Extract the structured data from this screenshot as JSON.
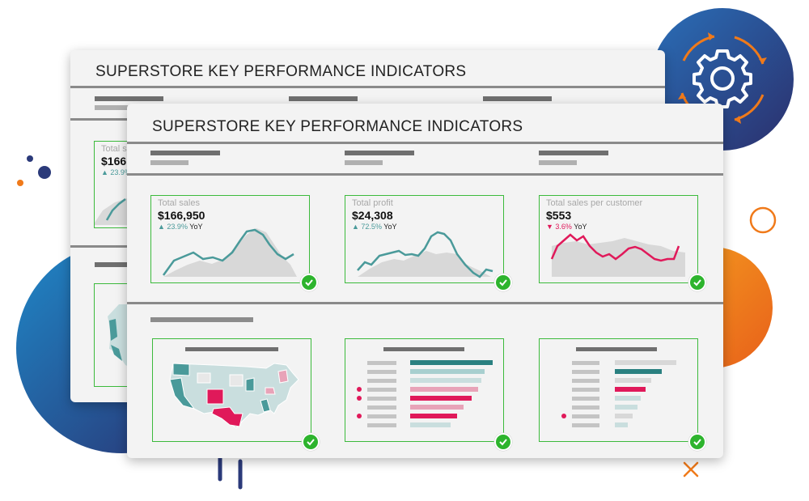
{
  "windows": {
    "back": {
      "title": "SUPERSTORE KEY PERFORMANCE INDICATORS",
      "kpi_partial": {
        "label": "Total s",
        "value": "$166",
        "delta": "23.9%"
      }
    },
    "front": {
      "title": "SUPERSTORE KEY PERFORMANCE INDICATORS",
      "kpis": [
        {
          "label": "Total sales",
          "value": "$166,950",
          "delta": "23.9%",
          "delta_suffix": "YoY",
          "direction": "up"
        },
        {
          "label": "Total profit",
          "value": "$24,308",
          "delta": "72.5%",
          "delta_suffix": "YoY",
          "direction": "up"
        },
        {
          "label": "Total sales per customer",
          "value": "$553",
          "delta": "3.6%",
          "delta_suffix": "YoY",
          "direction": "down"
        }
      ]
    }
  },
  "colors": {
    "teal": "#4a9a9a",
    "crimson": "#e0195a",
    "success_green": "#2db42d",
    "card_border": "#3cba3c",
    "navy": "#2a3a7a",
    "orange": "#f07a1a"
  },
  "icons": [
    "gear-icon",
    "checkmark-icon",
    "us-map-icon",
    "close-x-icon"
  ]
}
